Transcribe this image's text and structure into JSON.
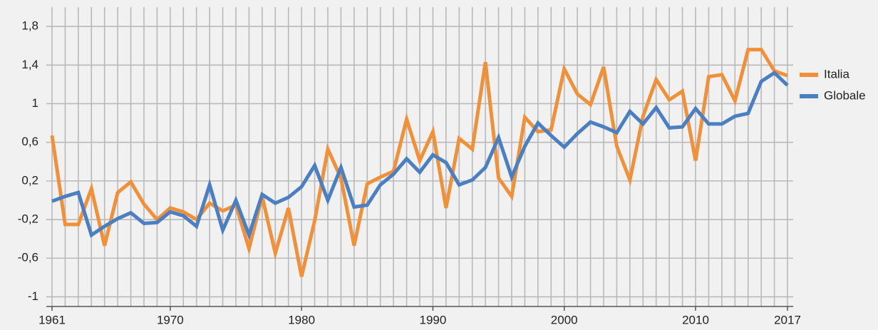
{
  "chart_data": {
    "type": "line",
    "x": [
      1961,
      1962,
      1963,
      1964,
      1965,
      1966,
      1967,
      1968,
      1969,
      1970,
      1971,
      1972,
      1973,
      1974,
      1975,
      1976,
      1977,
      1978,
      1979,
      1980,
      1981,
      1982,
      1983,
      1984,
      1985,
      1986,
      1987,
      1988,
      1989,
      1990,
      1991,
      1992,
      1993,
      1994,
      1995,
      1996,
      1997,
      1998,
      1999,
      2000,
      2001,
      2002,
      2003,
      2004,
      2005,
      2006,
      2007,
      2008,
      2009,
      2010,
      2011,
      2012,
      2013,
      2014,
      2015,
      2016,
      2017
    ],
    "series": [
      {
        "name": "Italia",
        "color": "#f0913a",
        "values": [
          0.67,
          -0.25,
          -0.25,
          0.12,
          -0.47,
          0.08,
          0.19,
          -0.04,
          -0.2,
          -0.08,
          -0.12,
          -0.2,
          -0.03,
          -0.11,
          -0.05,
          -0.5,
          0.04,
          -0.55,
          -0.08,
          -0.79,
          -0.21,
          0.53,
          0.23,
          -0.47,
          0.17,
          0.24,
          0.3,
          0.84,
          0.41,
          0.71,
          -0.08,
          0.64,
          0.53,
          1.43,
          0.23,
          0.04,
          0.86,
          0.71,
          0.73,
          1.36,
          1.1,
          0.99,
          1.38,
          0.56,
          0.21,
          0.87,
          1.25,
          1.04,
          1.13,
          0.41,
          1.28,
          1.3,
          1.03,
          1.56,
          1.56,
          1.34,
          1.29
        ]
      },
      {
        "name": "Globale",
        "color": "#4a7fc1",
        "values": [
          -0.01,
          0.04,
          0.08,
          -0.36,
          -0.27,
          -0.19,
          -0.13,
          -0.24,
          -0.23,
          -0.12,
          -0.16,
          -0.27,
          0.16,
          -0.31,
          0.0,
          -0.36,
          0.06,
          -0.03,
          0.03,
          0.14,
          0.36,
          0.0,
          0.34,
          -0.07,
          -0.05,
          0.16,
          0.27,
          0.43,
          0.29,
          0.47,
          0.39,
          0.16,
          0.21,
          0.34,
          0.65,
          0.24,
          0.56,
          0.8,
          0.67,
          0.55,
          0.69,
          0.81,
          0.76,
          0.7,
          0.92,
          0.79,
          0.96,
          0.75,
          0.76,
          0.95,
          0.79,
          0.79,
          0.87,
          0.9,
          1.23,
          1.32,
          1.19
        ]
      }
    ],
    "xlim": [
      1961,
      2017
    ],
    "xticks": [
      1961,
      1970,
      1980,
      1990,
      2000,
      2010,
      2017
    ],
    "ylim": [
      -1.1,
      2.0
    ],
    "yticks": [
      -1,
      {
        "value": -0.6,
        "label": "-0,6"
      },
      {
        "value": -0.2,
        "label": "-0,2"
      },
      {
        "value": 0.2,
        "label": "0,2"
      },
      {
        "value": 0.6,
        "label": "0,6"
      },
      1,
      {
        "value": 1.4,
        "label": "1,4"
      },
      {
        "value": 1.8,
        "label": "1,8"
      }
    ],
    "grid": true,
    "legend": "right"
  }
}
